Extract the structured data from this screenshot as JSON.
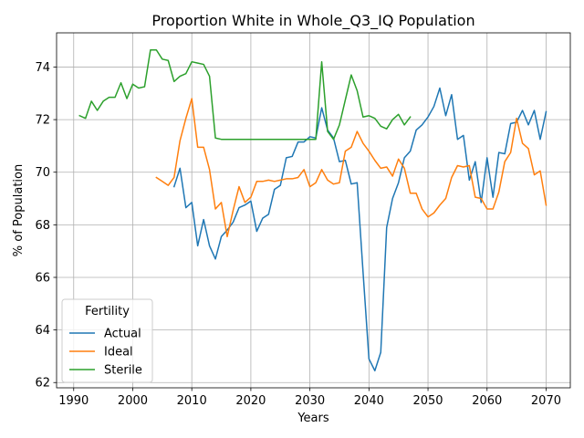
{
  "chart_data": {
    "type": "line",
    "title": "Proportion White in Whole_Q3_IQ Population",
    "xlabel": "Years",
    "ylabel": "% of Population",
    "xlim": [
      1987.1,
      2074.1
    ],
    "ylim": [
      61.8,
      75.3
    ],
    "xticks": [
      1990,
      2000,
      2010,
      2020,
      2030,
      2040,
      2050,
      2060,
      2070
    ],
    "yticks": [
      62,
      64,
      66,
      68,
      70,
      72,
      74
    ],
    "grid": true,
    "legend": {
      "title": "Fertility",
      "position": "lower-left"
    },
    "series": [
      {
        "name": "Actual",
        "color": "#1f77b4",
        "x": [
          2007,
          2008,
          2009,
          2010,
          2011,
          2012,
          2013,
          2014,
          2015,
          2016,
          2017,
          2018,
          2019,
          2020,
          2021,
          2022,
          2023,
          2024,
          2025,
          2026,
          2027,
          2028,
          2029,
          2030,
          2031,
          2032,
          2033,
          2034,
          2035,
          2036,
          2037,
          2038,
          2039,
          2040,
          2041,
          2042,
          2043,
          2044,
          2045,
          2046,
          2047,
          2048,
          2049,
          2050,
          2051,
          2052,
          2053,
          2054,
          2055,
          2056,
          2057,
          2058,
          2059,
          2060,
          2061,
          2062,
          2063,
          2064,
          2065,
          2066,
          2067,
          2068,
          2069,
          2070
        ],
        "y": [
          69.45,
          70.15,
          68.65,
          68.85,
          67.2,
          68.2,
          67.2,
          66.7,
          67.55,
          67.8,
          68.1,
          68.65,
          68.75,
          68.9,
          67.75,
          68.25,
          68.4,
          69.35,
          69.5,
          70.55,
          70.6,
          71.15,
          71.15,
          71.35,
          71.3,
          72.45,
          71.6,
          71.3,
          70.4,
          70.45,
          69.55,
          69.6,
          66.2,
          62.9,
          62.45,
          63.15,
          67.9,
          69.0,
          69.6,
          70.55,
          70.8,
          71.6,
          71.8,
          72.1,
          72.5,
          73.2,
          72.15,
          72.95,
          71.25,
          71.4,
          69.7,
          70.4,
          68.85,
          70.55,
          69.05,
          70.75,
          70.7,
          71.85,
          71.9,
          72.35,
          71.8,
          72.35,
          71.25,
          72.3
        ]
      },
      {
        "name": "Ideal",
        "color": "#ff7f0e",
        "x": [
          2004,
          2005,
          2006,
          2007,
          2008,
          2009,
          2010,
          2011,
          2012,
          2013,
          2014,
          2015,
          2016,
          2017,
          2018,
          2019,
          2020,
          2021,
          2022,
          2023,
          2024,
          2025,
          2026,
          2027,
          2028,
          2029,
          2030,
          2031,
          2032,
          2033,
          2034,
          2035,
          2036,
          2037,
          2038,
          2039,
          2040,
          2041,
          2042,
          2043,
          2044,
          2045,
          2046,
          2047,
          2048,
          2049,
          2050,
          2051,
          2052,
          2053,
          2054,
          2055,
          2056,
          2057,
          2058,
          2059,
          2060,
          2061,
          2062,
          2063,
          2064,
          2065,
          2066,
          2067,
          2068,
          2069,
          2070
        ],
        "y": [
          69.8,
          69.65,
          69.5,
          69.8,
          71.2,
          72.05,
          72.8,
          70.95,
          70.95,
          70.1,
          68.6,
          68.85,
          67.55,
          68.55,
          69.45,
          68.85,
          69.05,
          69.65,
          69.65,
          69.7,
          69.65,
          69.7,
          69.75,
          69.75,
          69.8,
          70.1,
          69.45,
          69.6,
          70.1,
          69.7,
          69.55,
          69.6,
          70.8,
          70.95,
          71.55,
          71.1,
          70.8,
          70.45,
          70.15,
          70.2,
          69.85,
          70.5,
          70.15,
          69.2,
          69.2,
          68.6,
          68.3,
          68.45,
          68.75,
          69.0,
          69.8,
          70.25,
          70.2,
          70.25,
          69.05,
          69.0,
          68.6,
          68.6,
          69.25,
          70.4,
          70.75,
          72.05,
          71.1,
          70.9,
          69.9,
          70.05,
          68.75
        ]
      },
      {
        "name": "Sterile",
        "color": "#2ca02c",
        "x": [
          1991,
          1992,
          1993,
          1994,
          1995,
          1996,
          1997,
          1998,
          1999,
          2000,
          2001,
          2002,
          2003,
          2004,
          2005,
          2006,
          2007,
          2008,
          2009,
          2010,
          2011,
          2012,
          2013,
          2014,
          2015,
          2016,
          2017,
          2018,
          2019,
          2020,
          2021,
          2022,
          2023,
          2024,
          2025,
          2026,
          2027,
          2028,
          2029,
          2030,
          2031,
          2032,
          2033,
          2034,
          2035,
          2036,
          2037,
          2038,
          2039,
          2040,
          2041,
          2042,
          2043,
          2044,
          2045,
          2046,
          2047
        ],
        "y": [
          72.15,
          72.05,
          72.7,
          72.35,
          72.7,
          72.85,
          72.85,
          73.4,
          72.8,
          73.35,
          73.2,
          73.25,
          74.65,
          74.65,
          74.3,
          74.25,
          73.45,
          73.65,
          73.75,
          74.2,
          74.15,
          74.1,
          73.65,
          71.3,
          71.25,
          71.25,
          71.25,
          71.25,
          71.25,
          71.25,
          71.25,
          71.25,
          71.25,
          71.25,
          71.25,
          71.25,
          71.25,
          71.25,
          71.25,
          71.25,
          71.25,
          74.2,
          71.55,
          71.25,
          71.8,
          72.75,
          73.7,
          73.1,
          72.1,
          72.15,
          72.05,
          71.75,
          71.65,
          72.0,
          72.2,
          71.8,
          72.1
        ]
      }
    ]
  }
}
